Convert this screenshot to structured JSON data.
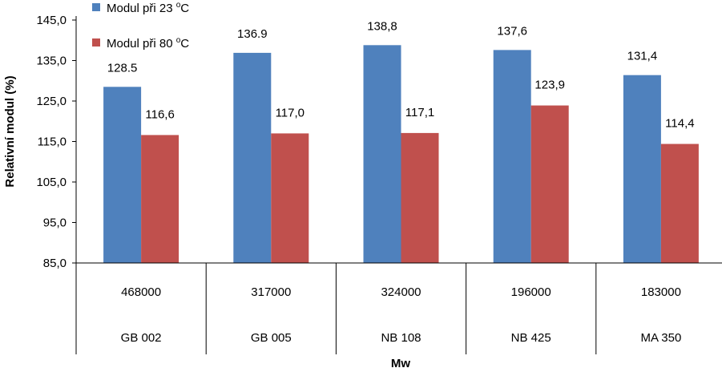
{
  "chart_data": {
    "type": "bar",
    "categories": [
      "468000",
      "317000",
      "324000",
      "196000",
      "183000"
    ],
    "category_sublabels": [
      "GB 002",
      "GB 005",
      "NB 108",
      "NB 425",
      "MA 350"
    ],
    "series": [
      {
        "name": "Modul při 23 °C",
        "name_parts": [
          "Modul při 23 ",
          "o",
          "C"
        ],
        "color": "#4F81BD",
        "values": [
          128.5,
          136.9,
          138.8,
          137.6,
          131.4
        ],
        "labels": [
          "128.5",
          "136.9",
          "138,8",
          "137,6",
          "131,4"
        ]
      },
      {
        "name": "Modul při 80 °C",
        "name_parts": [
          "Modul při 80 ",
          "o",
          "C"
        ],
        "color": "#C0504D",
        "values": [
          116.6,
          117.0,
          117.1,
          123.9,
          114.4
        ],
        "labels": [
          "116,6",
          "117,0",
          "117,1",
          "123,9",
          "114,4"
        ]
      }
    ],
    "xlabel": "Mw",
    "ylabel": "Relativní modul (%)",
    "ylim": [
      85.0,
      145.0
    ],
    "yticks": [
      85.0,
      95.0,
      105.0,
      115.0,
      125.0,
      135.0,
      145.0
    ],
    "ytick_labels": [
      "85,0",
      "95,0",
      "105,0",
      "115,0",
      "125,0",
      "135,0",
      "145,0"
    ],
    "grid": false,
    "legend_position": "top-left"
  }
}
